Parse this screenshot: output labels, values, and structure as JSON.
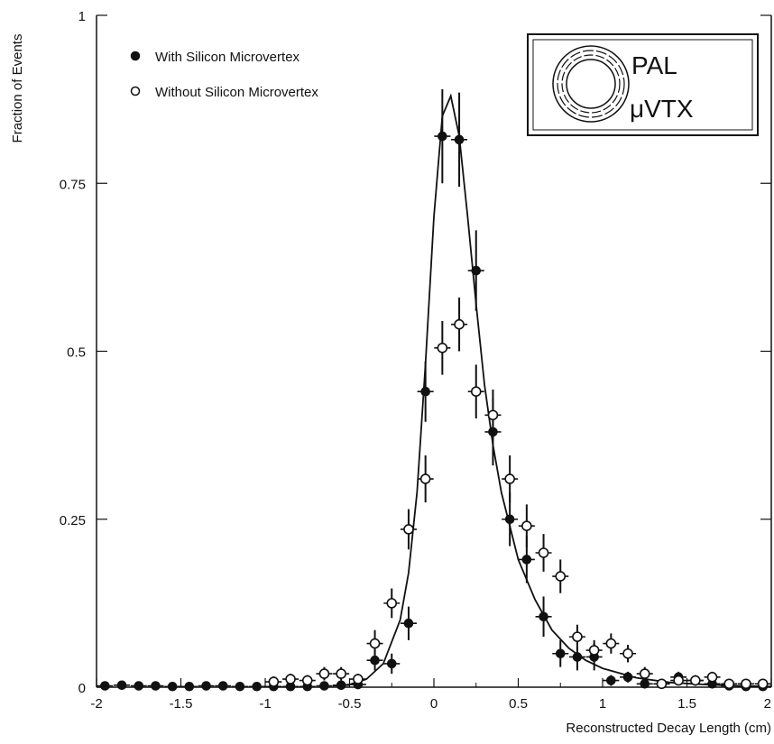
{
  "chart_data": {
    "type": "scatter",
    "title": "",
    "xlabel": "Reconstructed Decay Length (cm)",
    "ylabel": "Fraction of Events",
    "xlim": [
      -2,
      2
    ],
    "ylim": [
      0,
      1
    ],
    "x_ticks": [
      -2,
      -1.5,
      -1,
      -0.5,
      0,
      0.5,
      1,
      1.5,
      2
    ],
    "x_tick_labels": [
      "-2",
      "-1.5",
      "-1",
      "-0.5",
      "0",
      "0.5",
      "1",
      "1.5",
      "2"
    ],
    "y_ticks": [
      0,
      0.25,
      0.5,
      0.75,
      1
    ],
    "y_tick_labels": [
      "0",
      "0.25",
      "0.5",
      "0.75",
      "1"
    ],
    "grid": false,
    "legend_position": "top-left",
    "logo": {
      "line1": "PAL",
      "line2": "μVTX"
    },
    "series": [
      {
        "name": "With Silicon Microvertex",
        "marker": "filled-circle",
        "x": [
          -1.95,
          -1.85,
          -1.75,
          -1.65,
          -1.55,
          -1.45,
          -1.35,
          -1.25,
          -1.15,
          -1.05,
          -0.95,
          -0.85,
          -0.75,
          -0.65,
          -0.55,
          -0.45,
          -0.35,
          -0.25,
          -0.15,
          -0.05,
          0.05,
          0.15,
          0.25,
          0.35,
          0.45,
          0.55,
          0.65,
          0.75,
          0.85,
          0.95,
          1.05,
          1.15,
          1.25,
          1.35,
          1.45,
          1.55,
          1.65,
          1.75,
          1.85,
          1.95
        ],
        "y": [
          0.002,
          0.003,
          0.002,
          0.002,
          0.001,
          0.001,
          0.002,
          0.002,
          0.001,
          0.001,
          0.001,
          0.001,
          0.001,
          0.002,
          0.003,
          0.004,
          0.04,
          0.035,
          0.095,
          0.44,
          0.82,
          0.815,
          0.62,
          0.38,
          0.25,
          0.19,
          0.105,
          0.05,
          0.045,
          0.045,
          0.01,
          0.015,
          0.005,
          0.005,
          0.015,
          0.01,
          0.005,
          0.002,
          0.001,
          0.001
        ],
        "yerr": [
          0.003,
          0.003,
          0.003,
          0.003,
          0.003,
          0.003,
          0.003,
          0.003,
          0.003,
          0.003,
          0.003,
          0.003,
          0.003,
          0.004,
          0.005,
          0.006,
          0.015,
          0.015,
          0.025,
          0.045,
          0.07,
          0.07,
          0.06,
          0.05,
          0.04,
          0.035,
          0.03,
          0.02,
          0.02,
          0.02,
          0.008,
          0.008,
          0.006,
          0.006,
          0.008,
          0.008,
          0.006,
          0.004,
          0.003,
          0.003
        ]
      },
      {
        "name": "Without Silicon Microvertex",
        "marker": "open-circle",
        "x": [
          -0.95,
          -0.85,
          -0.75,
          -0.65,
          -0.55,
          -0.45,
          -0.35,
          -0.25,
          -0.15,
          -0.05,
          0.05,
          0.15,
          0.25,
          0.35,
          0.45,
          0.55,
          0.65,
          0.75,
          0.85,
          0.95,
          1.05,
          1.15,
          1.25,
          1.35,
          1.45,
          1.55,
          1.65,
          1.75,
          1.85,
          1.95
        ],
        "y": [
          0.008,
          0.012,
          0.01,
          0.02,
          0.02,
          0.012,
          0.065,
          0.125,
          0.235,
          0.31,
          0.505,
          0.54,
          0.44,
          0.405,
          0.31,
          0.24,
          0.2,
          0.165,
          0.075,
          0.055,
          0.065,
          0.05,
          0.02,
          0.005,
          0.01,
          0.01,
          0.015,
          0.005,
          0.005,
          0.005
        ],
        "yerr": [
          0.008,
          0.008,
          0.008,
          0.01,
          0.01,
          0.008,
          0.02,
          0.022,
          0.03,
          0.035,
          0.04,
          0.04,
          0.04,
          0.038,
          0.035,
          0.032,
          0.028,
          0.025,
          0.018,
          0.015,
          0.015,
          0.013,
          0.01,
          0.006,
          0.007,
          0.007,
          0.008,
          0.006,
          0.006,
          0.006
        ]
      }
    ],
    "fit": {
      "type": "line",
      "x": [
        -0.6,
        -0.5,
        -0.4,
        -0.3,
        -0.2,
        -0.15,
        -0.1,
        -0.05,
        0,
        0.05,
        0.1,
        0.15,
        0.2,
        0.25,
        0.3,
        0.35,
        0.4,
        0.5,
        0.6,
        0.7,
        0.8,
        0.9,
        1.0,
        1.2,
        1.4,
        1.6,
        1.8,
        2.0
      ],
      "y": [
        0.002,
        0.004,
        0.012,
        0.035,
        0.1,
        0.17,
        0.29,
        0.48,
        0.7,
        0.85,
        0.88,
        0.82,
        0.7,
        0.57,
        0.45,
        0.36,
        0.29,
        0.19,
        0.13,
        0.085,
        0.058,
        0.04,
        0.028,
        0.014,
        0.007,
        0.004,
        0.002,
        0.001
      ]
    }
  }
}
